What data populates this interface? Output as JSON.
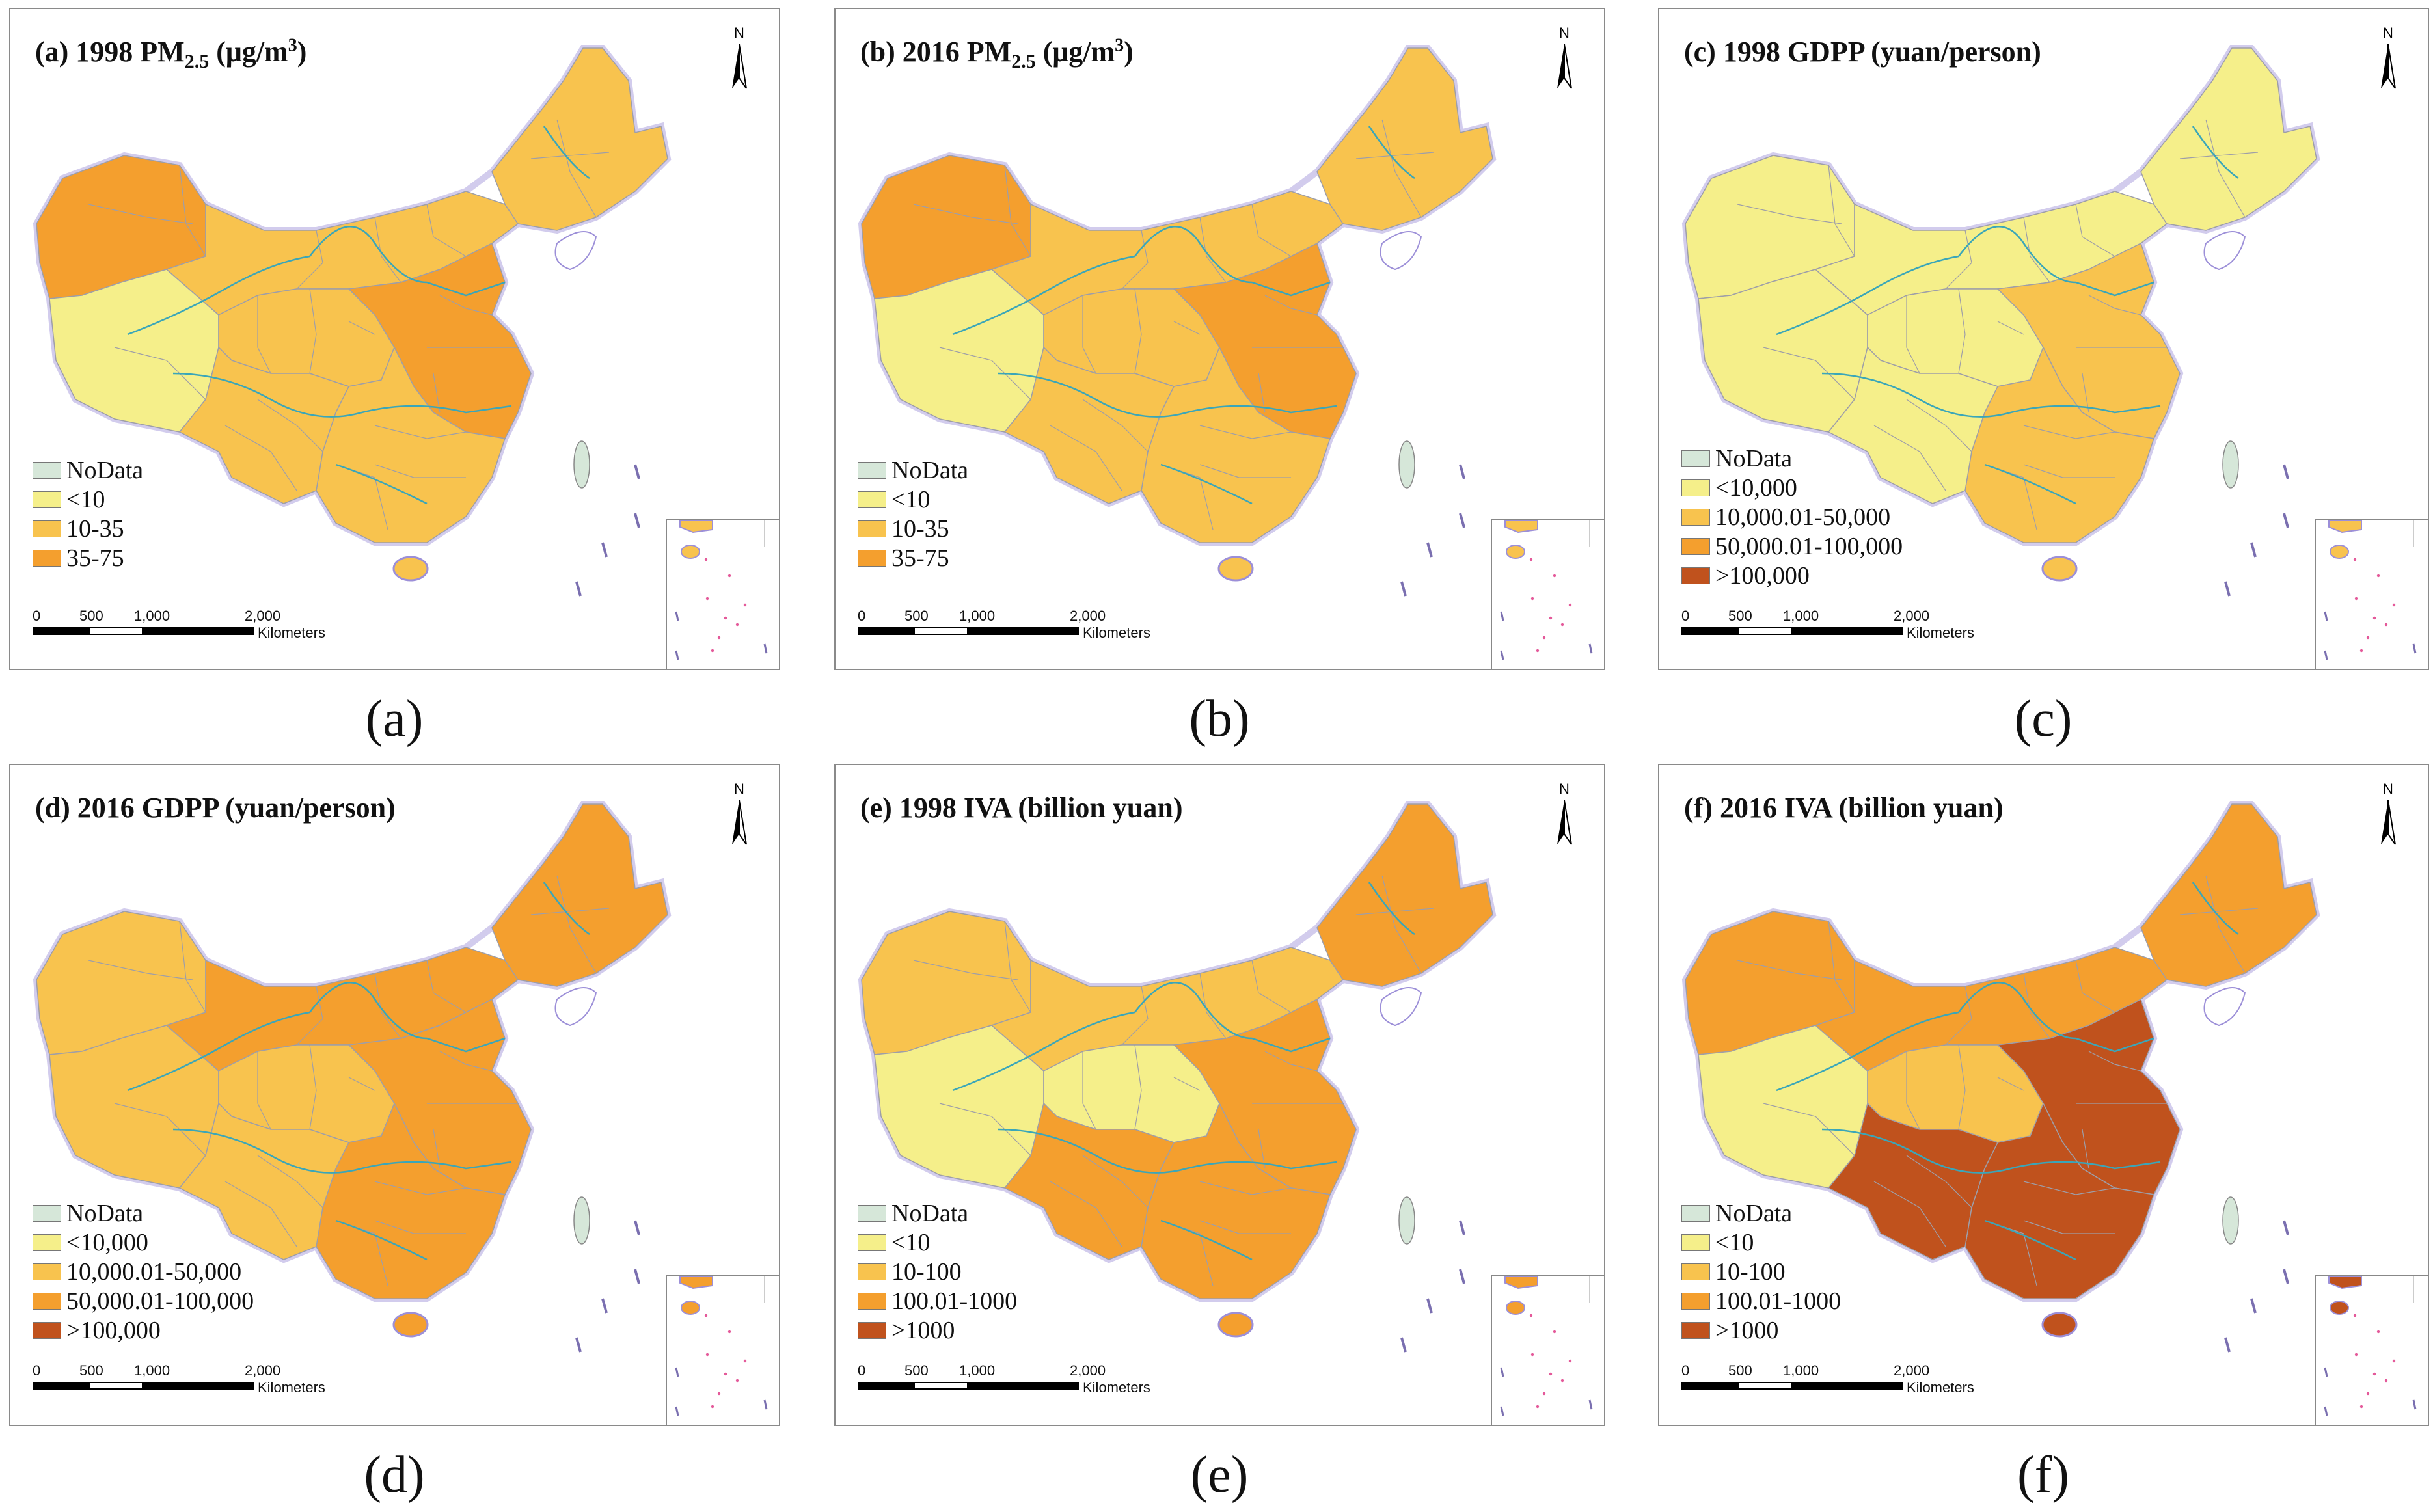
{
  "colors": {
    "nodata": "#d6e7d9",
    "c1": "#f5ef8a",
    "c2": "#f8c34e",
    "c3": "#f49f2e",
    "c4": "#c0521d",
    "border": "#9e9ea8",
    "river": "#3aa6b9",
    "coast": "#9c8fd8",
    "sea": "#cde6ef"
  },
  "north_label": "N",
  "panels": [
    {
      "title_main": "(a) 1998 PM",
      "title_sub": "2.5",
      "title_rest": " (μg/m",
      "title_sup": "3",
      "title_end": ")",
      "caption": "(a)",
      "legend": [
        "NoData",
        "<10",
        "10-35",
        "35-75"
      ],
      "scale": {
        "ticks": [
          "0",
          "500",
          "1,000",
          "2,000"
        ],
        "unit": "Kilometers"
      },
      "fill_levels": {
        "northwest": 3,
        "tibet": 1,
        "north": 2,
        "northeast": 2,
        "center": 2,
        "east": 3,
        "south": 2,
        "southwest": 2
      }
    },
    {
      "title_main": "(b) 2016 PM",
      "title_sub": "2.5",
      "title_rest": " (μg/m",
      "title_sup": "3",
      "title_end": ")",
      "caption": "(b)",
      "legend": [
        "NoData",
        "<10",
        "10-35",
        "35-75"
      ],
      "scale": {
        "ticks": [
          "0",
          "500",
          "1,000",
          "2,000"
        ],
        "unit": "Kilometers"
      },
      "fill_levels": {
        "northwest": 3,
        "tibet": 1,
        "north": 2,
        "northeast": 2,
        "center": 2,
        "east": 3,
        "south": 2,
        "southwest": 2
      }
    },
    {
      "title_main": "(c) 1998 GDPP (yuan/person)",
      "title_sub": "",
      "title_rest": "",
      "title_sup": "",
      "title_end": "",
      "caption": "(c)",
      "legend": [
        "NoData",
        "<10,000",
        "10,000.01-50,000",
        "50,000.01-100,000",
        ">100,000"
      ],
      "scale": {
        "ticks": [
          "0",
          "500",
          "1,000",
          "2,000"
        ],
        "unit": "Kilometers"
      },
      "fill_levels": {
        "northwest": 1,
        "tibet": 1,
        "north": 1,
        "northeast": 1,
        "center": 1,
        "east": 2,
        "south": 2,
        "southwest": 1
      }
    },
    {
      "title_main": "(d) 2016 GDPP (yuan/person)",
      "title_sub": "",
      "title_rest": "",
      "title_sup": "",
      "title_end": "",
      "caption": "(d)",
      "legend": [
        "NoData",
        "<10,000",
        "10,000.01-50,000",
        "50,000.01-100,000",
        ">100,000"
      ],
      "scale": {
        "ticks": [
          "0",
          "500",
          "1,000",
          "2,000"
        ],
        "unit": "Kilometers"
      },
      "fill_levels": {
        "northwest": 2,
        "tibet": 2,
        "north": 3,
        "northeast": 3,
        "center": 2,
        "east": 3,
        "south": 3,
        "southwest": 2
      }
    },
    {
      "title_main": "(e) 1998 IVA (billion yuan)",
      "title_sub": "",
      "title_rest": "",
      "title_sup": "",
      "title_end": "",
      "caption": "(e)",
      "legend": [
        "NoData",
        "<10",
        "10-100",
        "100.01-1000",
        ">1000"
      ],
      "scale": {
        "ticks": [
          "0",
          "500",
          "1,000",
          "2,000"
        ],
        "unit": "Kilometers"
      },
      "fill_levels": {
        "northwest": 2,
        "tibet": 1,
        "north": 2,
        "northeast": 3,
        "center": 1,
        "east": 3,
        "south": 3,
        "southwest": 3
      }
    },
    {
      "title_main": "(f) 2016 IVA (billion yuan)",
      "title_sub": "",
      "title_rest": "",
      "title_sup": "",
      "title_end": "",
      "caption": "(f)",
      "legend": [
        "NoData",
        "<10",
        "10-100",
        "100.01-1000",
        ">1000"
      ],
      "scale": {
        "ticks": [
          "0",
          "500",
          "1,000",
          "2,000"
        ],
        "unit": "Kilometers"
      },
      "fill_levels": {
        "northwest": 3,
        "tibet": 1,
        "north": 3,
        "northeast": 3,
        "center": 2,
        "east": 4,
        "south": 4,
        "southwest": 4
      }
    }
  ]
}
